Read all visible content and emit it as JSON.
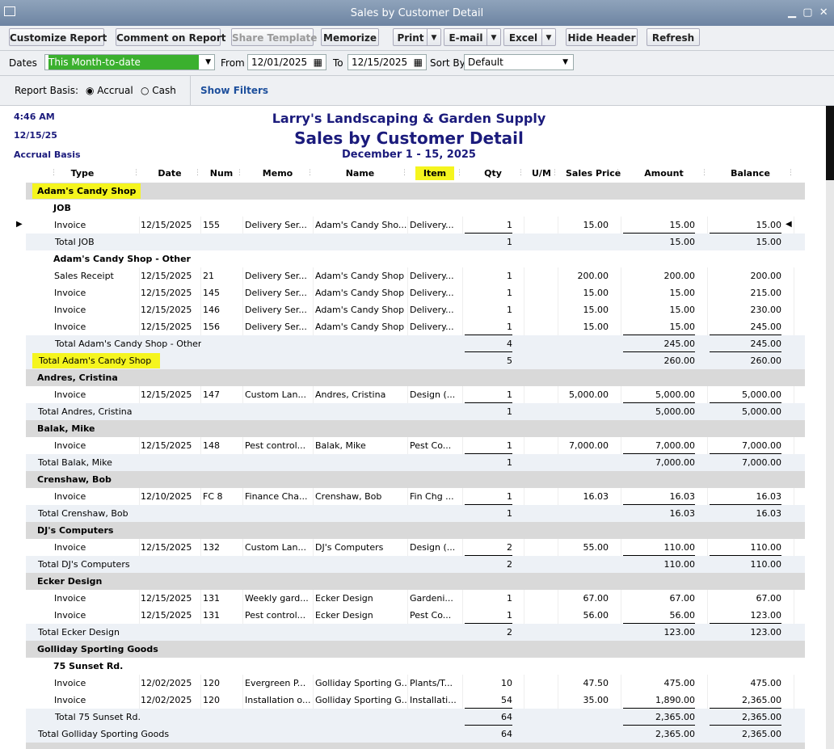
{
  "window": {
    "title": "Sales by Customer Detail"
  },
  "toolbar": {
    "buttons": [
      {
        "label": "Customize Report"
      },
      {
        "label": "Comment on Report"
      },
      {
        "label": "Share Template",
        "disabled": true
      },
      {
        "label": "Memorize"
      },
      {
        "label": "Print",
        "menu": true
      },
      {
        "label": "E-mail",
        "menu": true
      },
      {
        "label": "Excel",
        "menu": true
      },
      {
        "label": "Hide Header"
      },
      {
        "label": "Refresh"
      }
    ]
  },
  "filters": {
    "dates_label": "Dates",
    "dates_value": "This Month-to-date",
    "from_label": "From",
    "from": "12/01/2025",
    "to_label": "To",
    "to": "12/15/2025",
    "sort_label": "Sort By",
    "sort": "Default"
  },
  "basis": {
    "label": "Report Basis:",
    "accrual": "Accrual",
    "cash": "Cash",
    "show_filters": "Show Filters"
  },
  "report": {
    "time": "4:46 AM",
    "date": "12/15/25",
    "basis": "Accrual Basis",
    "company": "Larry's Landscaping & Garden Supply",
    "title": "Sales by Customer Detail",
    "period": "December 1 - 15, 2025",
    "columns": [
      "Type",
      "Date",
      "Num",
      "Memo",
      "Name",
      "Item",
      "Qty",
      "U/M",
      "Sales Price",
      "Amount",
      "Balance"
    ],
    "highlight_column_index": 5,
    "rows": [
      {
        "kind": "group",
        "level": 0,
        "label": "Adam's Candy Shop",
        "highlight": true
      },
      {
        "kind": "group",
        "level": 1,
        "label": "JOB"
      },
      {
        "kind": "line",
        "selected": true,
        "cells": {
          "type": "Invoice",
          "date": "12/15/2025",
          "num": "155",
          "memo": "Delivery Ser...",
          "name": "Adam's Candy Sho...",
          "item": "Delivery...",
          "qty": "1",
          "price": "15.00",
          "amount": "15.00",
          "balance": "15.00"
        }
      },
      {
        "kind": "total",
        "level": 1,
        "label": "Total JOB",
        "qty": "1",
        "amount": "15.00",
        "balance": "15.00"
      },
      {
        "kind": "group",
        "level": 1,
        "label": "Adam's Candy Shop - Other"
      },
      {
        "kind": "line",
        "cells": {
          "type": "Sales Receipt",
          "date": "12/15/2025",
          "num": "21",
          "memo": "Delivery Ser...",
          "name": "Adam's Candy Shop",
          "item": "Delivery...",
          "qty": "1",
          "price": "200.00",
          "amount": "200.00",
          "balance": "200.00"
        }
      },
      {
        "kind": "line",
        "cells": {
          "type": "Invoice",
          "date": "12/15/2025",
          "num": "145",
          "memo": "Delivery Ser...",
          "name": "Adam's Candy Shop",
          "item": "Delivery...",
          "qty": "1",
          "price": "15.00",
          "amount": "15.00",
          "balance": "215.00"
        }
      },
      {
        "kind": "line",
        "cells": {
          "type": "Invoice",
          "date": "12/15/2025",
          "num": "146",
          "memo": "Delivery Ser...",
          "name": "Adam's Candy Shop",
          "item": "Delivery...",
          "qty": "1",
          "price": "15.00",
          "amount": "15.00",
          "balance": "230.00"
        }
      },
      {
        "kind": "line",
        "cells": {
          "type": "Invoice",
          "date": "12/15/2025",
          "num": "156",
          "memo": "Delivery Ser...",
          "name": "Adam's Candy Shop",
          "item": "Delivery...",
          "qty": "1",
          "price": "15.00",
          "amount": "15.00",
          "balance": "245.00"
        }
      },
      {
        "kind": "total",
        "level": 1,
        "label": "Total Adam's Candy Shop - Other",
        "qty": "4",
        "amount": "245.00",
        "balance": "245.00"
      },
      {
        "kind": "total",
        "level": 0,
        "label": "Total Adam's Candy Shop",
        "qty": "5",
        "amount": "260.00",
        "balance": "260.00",
        "highlight": true
      },
      {
        "kind": "group",
        "level": 0,
        "label": "Andres, Cristina"
      },
      {
        "kind": "line",
        "cells": {
          "type": "Invoice",
          "date": "12/15/2025",
          "num": "147",
          "memo": "Custom Lan...",
          "name": "Andres, Cristina",
          "item": "Design (...",
          "qty": "1",
          "price": "5,000.00",
          "amount": "5,000.00",
          "balance": "5,000.00"
        }
      },
      {
        "kind": "total",
        "level": 0,
        "label": "Total Andres, Cristina",
        "qty": "1",
        "amount": "5,000.00",
        "balance": "5,000.00"
      },
      {
        "kind": "group",
        "level": 0,
        "label": "Balak, Mike"
      },
      {
        "kind": "line",
        "cells": {
          "type": "Invoice",
          "date": "12/15/2025",
          "num": "148",
          "memo": "Pest control...",
          "name": "Balak, Mike",
          "item": "Pest Co...",
          "qty": "1",
          "price": "7,000.00",
          "amount": "7,000.00",
          "balance": "7,000.00"
        }
      },
      {
        "kind": "total",
        "level": 0,
        "label": "Total Balak, Mike",
        "qty": "1",
        "amount": "7,000.00",
        "balance": "7,000.00"
      },
      {
        "kind": "group",
        "level": 0,
        "label": "Crenshaw, Bob"
      },
      {
        "kind": "line",
        "cells": {
          "type": "Invoice",
          "date": "12/10/2025",
          "num": "FC 8",
          "memo": "Finance Cha...",
          "name": "Crenshaw, Bob",
          "item": "Fin Chg ...",
          "qty": "1",
          "price": "16.03",
          "amount": "16.03",
          "balance": "16.03"
        }
      },
      {
        "kind": "total",
        "level": 0,
        "label": "Total Crenshaw, Bob",
        "qty": "1",
        "amount": "16.03",
        "balance": "16.03"
      },
      {
        "kind": "group",
        "level": 0,
        "label": "DJ's Computers"
      },
      {
        "kind": "line",
        "cells": {
          "type": "Invoice",
          "date": "12/15/2025",
          "num": "132",
          "memo": "Custom Lan...",
          "name": "DJ's Computers",
          "item": "Design (...",
          "qty": "2",
          "price": "55.00",
          "amount": "110.00",
          "balance": "110.00"
        }
      },
      {
        "kind": "total",
        "level": 0,
        "label": "Total DJ's Computers",
        "qty": "2",
        "amount": "110.00",
        "balance": "110.00"
      },
      {
        "kind": "group",
        "level": 0,
        "label": "Ecker Design"
      },
      {
        "kind": "line",
        "cells": {
          "type": "Invoice",
          "date": "12/15/2025",
          "num": "131",
          "memo": "Weekly gard...",
          "name": "Ecker Design",
          "item": "Gardeni...",
          "qty": "1",
          "price": "67.00",
          "amount": "67.00",
          "balance": "67.00"
        }
      },
      {
        "kind": "line",
        "cells": {
          "type": "Invoice",
          "date": "12/15/2025",
          "num": "131",
          "memo": "Pest control...",
          "name": "Ecker Design",
          "item": "Pest Co...",
          "qty": "1",
          "price": "56.00",
          "amount": "56.00",
          "balance": "123.00"
        }
      },
      {
        "kind": "total",
        "level": 0,
        "label": "Total Ecker Design",
        "qty": "2",
        "amount": "123.00",
        "balance": "123.00"
      },
      {
        "kind": "group",
        "level": 0,
        "label": "Golliday Sporting Goods"
      },
      {
        "kind": "group",
        "level": 1,
        "label": "75 Sunset Rd."
      },
      {
        "kind": "line",
        "cells": {
          "type": "Invoice",
          "date": "12/02/2025",
          "num": "120",
          "memo": "Evergreen P...",
          "name": "Golliday Sporting G...",
          "item": "Plants/T...",
          "qty": "10",
          "price": "47.50",
          "amount": "475.00",
          "balance": "475.00"
        }
      },
      {
        "kind": "line",
        "cells": {
          "type": "Invoice",
          "date": "12/02/2025",
          "num": "120",
          "memo": "Installation o...",
          "name": "Golliday Sporting G...",
          "item": "Installati...",
          "qty": "54",
          "price": "35.00",
          "amount": "1,890.00",
          "balance": "2,365.00"
        }
      },
      {
        "kind": "total",
        "level": 1,
        "label": "Total 75 Sunset Rd.",
        "qty": "64",
        "amount": "2,365.00",
        "balance": "2,365.00"
      },
      {
        "kind": "total",
        "level": 0,
        "label": "Total Golliday Sporting Goods",
        "qty": "64",
        "amount": "2,365.00",
        "balance": "2,365.00"
      }
    ]
  }
}
